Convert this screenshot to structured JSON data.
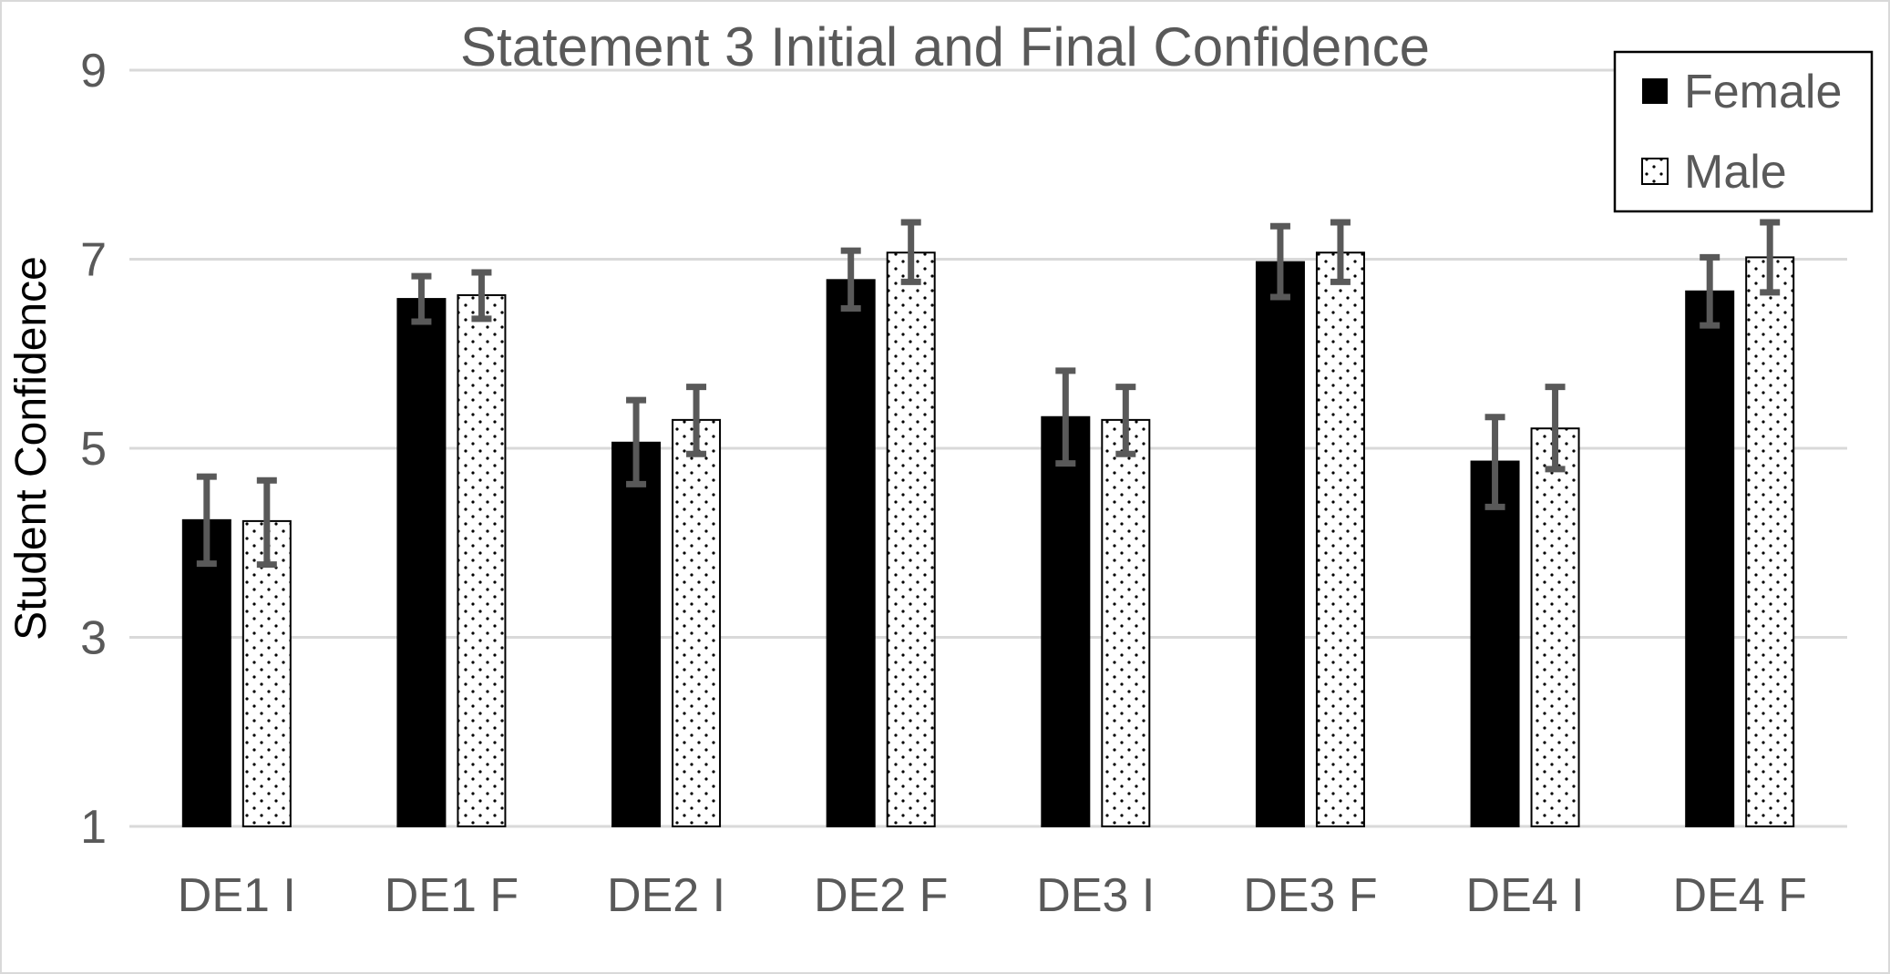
{
  "chart_data": {
    "type": "bar",
    "title": "Statement 3 Initial and Final Confidence",
    "xlabel": "",
    "ylabel": "Student Confidence",
    "ylim": [
      1,
      9
    ],
    "yticks": [
      "1",
      "3",
      "5",
      "7",
      "9"
    ],
    "grid": true,
    "legend_position": "top-right",
    "categories": [
      "DE1 I",
      "DE1 F",
      "DE2 I",
      "DE2 F",
      "DE3 I",
      "DE3 F",
      "DE4 I",
      "DE4 F"
    ],
    "series": [
      {
        "name": "Female",
        "fill": "#000000",
        "pattern": "solid",
        "values": [
          4.24,
          6.58,
          5.06,
          6.78,
          5.33,
          6.97,
          4.86,
          6.66
        ],
        "error_low": [
          3.78,
          6.34,
          4.62,
          6.48,
          4.84,
          6.6,
          4.38,
          6.3
        ],
        "error_high": [
          4.7,
          6.82,
          5.51,
          7.09,
          5.82,
          7.35,
          5.33,
          7.02
        ]
      },
      {
        "name": "Male",
        "fill": "#ffffff",
        "pattern": "dotted",
        "values": [
          4.23,
          6.62,
          5.3,
          7.07,
          5.3,
          7.07,
          5.21,
          7.02
        ],
        "error_low": [
          3.77,
          6.37,
          4.94,
          6.76,
          4.94,
          6.76,
          4.78,
          6.65
        ],
        "error_high": [
          4.66,
          6.86,
          5.65,
          7.39,
          5.65,
          7.39,
          5.65,
          7.39
        ]
      }
    ],
    "error_bar_color": "#595959"
  }
}
